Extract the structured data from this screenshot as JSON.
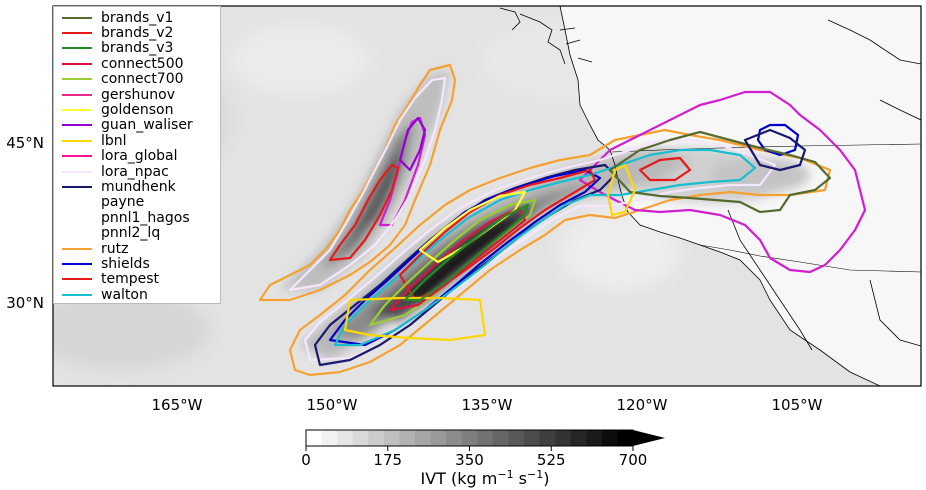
{
  "map": {
    "lat_labels": [
      {
        "text": "45°N",
        "lat": 45
      },
      {
        "text": "30°N",
        "lat": 30
      }
    ],
    "lon_labels": [
      {
        "text": "165°W",
        "lon": -165
      },
      {
        "text": "150°W",
        "lon": -150
      },
      {
        "text": "135°W",
        "lon": -135
      },
      {
        "text": "120°W",
        "lon": -120
      },
      {
        "text": "105°W",
        "lon": -105
      }
    ]
  },
  "legend": {
    "items": [
      {
        "label": "brands_v1",
        "color": "#556b2f"
      },
      {
        "label": "brands_v2",
        "color": "#e41a1c"
      },
      {
        "label": "brands_v3",
        "color": "#228b22"
      },
      {
        "label": "connect500",
        "color": "#dc143c"
      },
      {
        "label": "connect700",
        "color": "#9acd32"
      },
      {
        "label": "gershunov",
        "color": "#e7298a"
      },
      {
        "label": "goldenson",
        "color": "#ffff33"
      },
      {
        "label": "guan_waliser",
        "color": "#9400d3"
      },
      {
        "label": "lbnl",
        "color": "#ffd700"
      },
      {
        "label": "lora_global",
        "color": "#ff1493"
      },
      {
        "label": "lora_npac",
        "color": "#f5e6ff"
      },
      {
        "label": "mundhenk",
        "color": "#191970"
      },
      {
        "label": "payne",
        "color": "#ffffff"
      },
      {
        "label": "pnnl1_hagos",
        "color": "#ffffff"
      },
      {
        "label": "pnnl2_lq",
        "color": "#ffffff"
      },
      {
        "label": "rutz",
        "color": "#f5a030"
      },
      {
        "label": "shields",
        "color": "#0000cd"
      },
      {
        "label": "tempest",
        "color": "#e41a1c"
      },
      {
        "label": "walton",
        "color": "#17becf"
      }
    ]
  },
  "colorbar": {
    "ticks": [
      "0",
      "175",
      "350",
      "525",
      "700"
    ],
    "tick_values": [
      0,
      175,
      350,
      525,
      700
    ],
    "min": 0,
    "max": 700,
    "extend": "max",
    "label_main": "IVT (kg m",
    "label_sup1": "−1",
    "label_mid": " s",
    "label_sup2": "−1",
    "label_end": ")",
    "colors": [
      "#ffffff",
      "#f2f2f2",
      "#e6e6e6",
      "#d9d9d9",
      "#cccccc",
      "#bfbfbf",
      "#b2b2b2",
      "#a5a5a5",
      "#999999",
      "#8c8c8c",
      "#7f7f7f",
      "#727272",
      "#666666",
      "#595959",
      "#4c4c4c",
      "#3f3f3f",
      "#333333",
      "#262626",
      "#1a1a1a",
      "#0d0d0d",
      "#000000"
    ]
  },
  "colors": {
    "ocean_bg": "#e4e4e4",
    "land_bg": "#ffffff",
    "coast": "#000000"
  }
}
